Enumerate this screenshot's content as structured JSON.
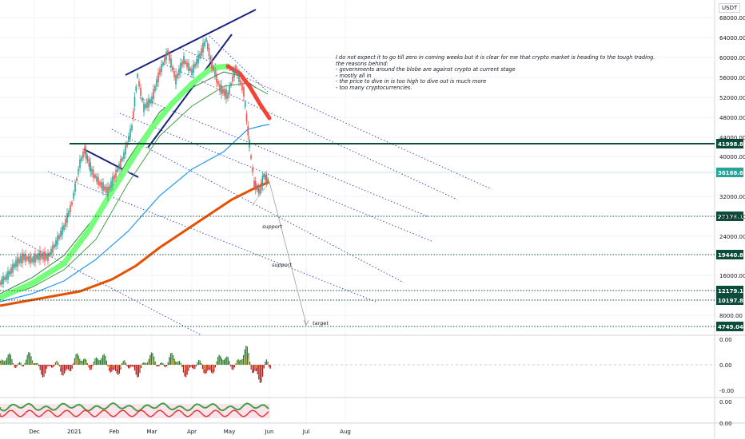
{
  "chart_data": {
    "type": "line",
    "currency": "USDT",
    "x_ticks": [
      "Dec",
      "2021",
      "Feb",
      "Mar",
      "Apr",
      "May",
      "Jun",
      "Jul",
      "Aug"
    ],
    "y_ticks": [
      "68000.00",
      "64000.00",
      "60000.00",
      "56000.00",
      "52000.00",
      "48000.00",
      "44000.00",
      "40000.00",
      "32000.00",
      "28000.00",
      "24000.00",
      "16000.00",
      "8000.00"
    ],
    "ylim": [
      3000,
      70000
    ],
    "levels": [
      {
        "value": 41998.86,
        "label": "41998.86",
        "style": "solid",
        "color": "#0b4d3a"
      },
      {
        "value": 36166.64,
        "label": "36166.64",
        "style": "last",
        "color": "#26a69a"
      },
      {
        "value": 27176.19,
        "label": "27176.19",
        "style": "dotted",
        "color": "#0b4d3a"
      },
      {
        "value": 19440.89,
        "label": "19440.89",
        "style": "dotted",
        "color": "#0b4d3a"
      },
      {
        "value": 12179.19,
        "label": "12179.19",
        "style": "dotted",
        "color": "#0b4d3a"
      },
      {
        "value": 10197.82,
        "label": "10197.82",
        "style": "dotted",
        "color": "#0b4d3a"
      },
      {
        "value": 4749.04,
        "label": "4749.04",
        "style": "dotted",
        "color": "#0b4d3a"
      }
    ],
    "annotations": [
      {
        "text": "support",
        "value": 26000
      },
      {
        "text": "support",
        "value": 17500
      },
      {
        "text": "target",
        "value": 6500
      }
    ],
    "note": [
      "I do not expect it to go till zero in coming weeks but it is clear for me that crypto market is heading to the tough trading.",
      "the reasons behind:",
      "- governments around the blobe are against crypto at current stage",
      "- mostly all in",
      "- the price to dive in is too high to dive out is much more",
      "- too many cryptocurrencies."
    ],
    "osc1_ticks": [
      "0.00",
      "0.00",
      "-0.00"
    ],
    "osc2_ticks": [
      "0.00",
      "0.00"
    ],
    "colors": {
      "bull": "#26a69a",
      "bear": "#ef5350",
      "ma_orange": "#e65100",
      "ma_blue": "#2196f3",
      "ma_green": "#43a047",
      "channel": "#3f51b5"
    }
  }
}
